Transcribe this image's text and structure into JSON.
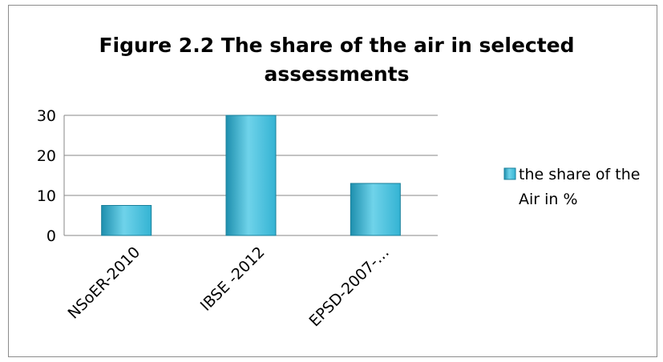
{
  "colors": {
    "bar_light": "#6fd3ea",
    "bar_mid": "#34b3d3",
    "bar_dark": "#1e8fae",
    "bar_edge": "#1a7f9a",
    "gridline": "#878787",
    "frame": "#8c8c8c"
  },
  "chart_data": {
    "type": "bar",
    "title_lines": [
      "Figure 2.2 The share of the air in selected",
      "assessments"
    ],
    "categories": [
      "NSoER-2010",
      "IBSE -2012",
      "EPSD-2007-…"
    ],
    "series": [
      {
        "name": "the share of the Air in %",
        "values": [
          7.5,
          30,
          13
        ]
      }
    ],
    "ylim": [
      0,
      30
    ],
    "yticks": [
      "0",
      "10",
      "20",
      "30"
    ],
    "grid": true,
    "legend": {
      "position": "right",
      "lines": [
        "the share of the",
        "Air in %"
      ]
    },
    "xlabel": "",
    "ylabel": ""
  }
}
